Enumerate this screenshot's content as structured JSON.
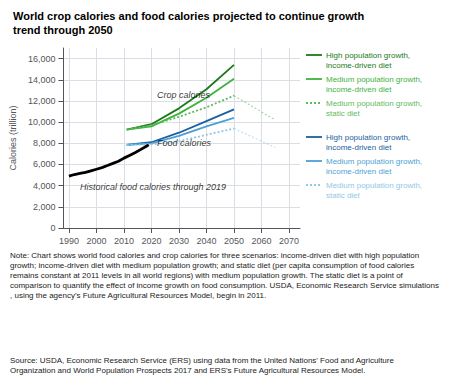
{
  "chart_data": {
    "type": "line",
    "title": "World crop calories and food calories projected to continue growth\ntrend through 2050",
    "ylabel": "Calories (trillion)",
    "xlim": [
      1988,
      2074
    ],
    "ylim": [
      0,
      17000
    ],
    "xticks": [
      1990,
      2000,
      2010,
      2020,
      2030,
      2040,
      2050,
      2060,
      2070
    ],
    "yticks": [
      0,
      {
        "value": 2000,
        "label": "2,000"
      },
      {
        "value": 4000,
        "label": "4,000"
      },
      {
        "value": 6000,
        "label": "6,000"
      },
      {
        "value": 8000,
        "label": "8,000"
      },
      {
        "value": 10000,
        "label": "10,000"
      },
      {
        "value": 12000,
        "label": "12,000"
      },
      {
        "value": 14000,
        "label": "14,000"
      },
      {
        "value": 16000,
        "label": "16,000"
      }
    ],
    "grid": true,
    "series": [
      {
        "color": "#000000",
        "line_style": "solid",
        "x": [
          1990,
          1992,
          1994,
          1996,
          1998,
          2000,
          2002,
          2004,
          2006,
          2008,
          2010,
          2012,
          2014,
          2016,
          2018,
          2019
        ],
        "values": [
          4900,
          5050,
          5150,
          5250,
          5400,
          5550,
          5700,
          5900,
          6100,
          6300,
          6600,
          6850,
          7100,
          7400,
          7700,
          7850
        ]
      },
      {
        "name": "High population growth,\nincome-driven diet",
        "color": "#1a7a1a",
        "line_style": "solid",
        "x": [
          2011,
          2020,
          2030,
          2040,
          2050
        ],
        "values": [
          9300,
          9800,
          11300,
          13100,
          15400
        ]
      },
      {
        "name": "Medium population growth,\nincome-driven diet",
        "color": "#3db33d",
        "line_style": "solid",
        "x": [
          2011,
          2020,
          2030,
          2040,
          2050
        ],
        "values": [
          9300,
          9600,
          10800,
          12300,
          14100
        ]
      },
      {
        "name": "Medium population growth,\nstatic diet",
        "color": "#5fba5f",
        "line_style": "dotted",
        "x": [
          2011,
          2020,
          2030,
          2040,
          2050
        ],
        "values": [
          9300,
          9700,
          10500,
          11400,
          12500
        ]
      },
      {
        "name": "High population growth,\nincome-driven diet",
        "color": "#1a5fa0",
        "line_style": "solid",
        "x": [
          2011,
          2020,
          2030,
          2040,
          2050
        ],
        "values": [
          7850,
          8100,
          9000,
          10100,
          11200
        ]
      },
      {
        "name": "Medium population growth,\nincome-driven diet",
        "color": "#4d9fd6",
        "line_style": "solid",
        "x": [
          2011,
          2020,
          2030,
          2040,
          2050
        ],
        "values": [
          7850,
          8000,
          8700,
          9600,
          10400
        ]
      },
      {
        "name": "Medium population growth,\nstatic diet",
        "color": "#90c8e8",
        "line_style": "dotted",
        "x": [
          2011,
          2020,
          2030,
          2040,
          2050
        ],
        "values": [
          7850,
          7900,
          8200,
          8800,
          9400
        ]
      },
      {
        "color": "#5fba5f",
        "line_style": "dotted",
        "x": [
          2050,
          2065
        ],
        "values": [
          12500,
          10200
        ]
      },
      {
        "color": "#90c8e8",
        "line_style": "dotted",
        "x": [
          2050,
          2065
        ],
        "values": [
          9400,
          7600
        ]
      }
    ],
    "annotations": [
      {
        "text": "Crop calories",
        "x": 2022,
        "y": 12600
      },
      {
        "text": "Food calories",
        "x": 2022,
        "y": 8050
      },
      {
        "text": "Historical food calories through 2019",
        "x": 1994,
        "y": 3900
      }
    ],
    "note": "Note: Chart shows world food calories and crop calories for three scenarios: income-driven diet with high population growth; income-driven diet with medium population growth; and static diet (per capita consumption of food calories remains constant at 2011 levels in all world regions) with medium population growth. The static diet is a point of comparison to quantify the effect of income growth on food consumption. USDA, Economic Research Service simulations, using the agency's Future Agricultural Resources Model, begin in 2011.",
    "source": "Source: USDA, Economic Research Service (ERS) using data from the United Nations' Food and Agriculture Organization and World Population Prospects 2017 and ERS's Future Agricultural Resources Model."
  }
}
